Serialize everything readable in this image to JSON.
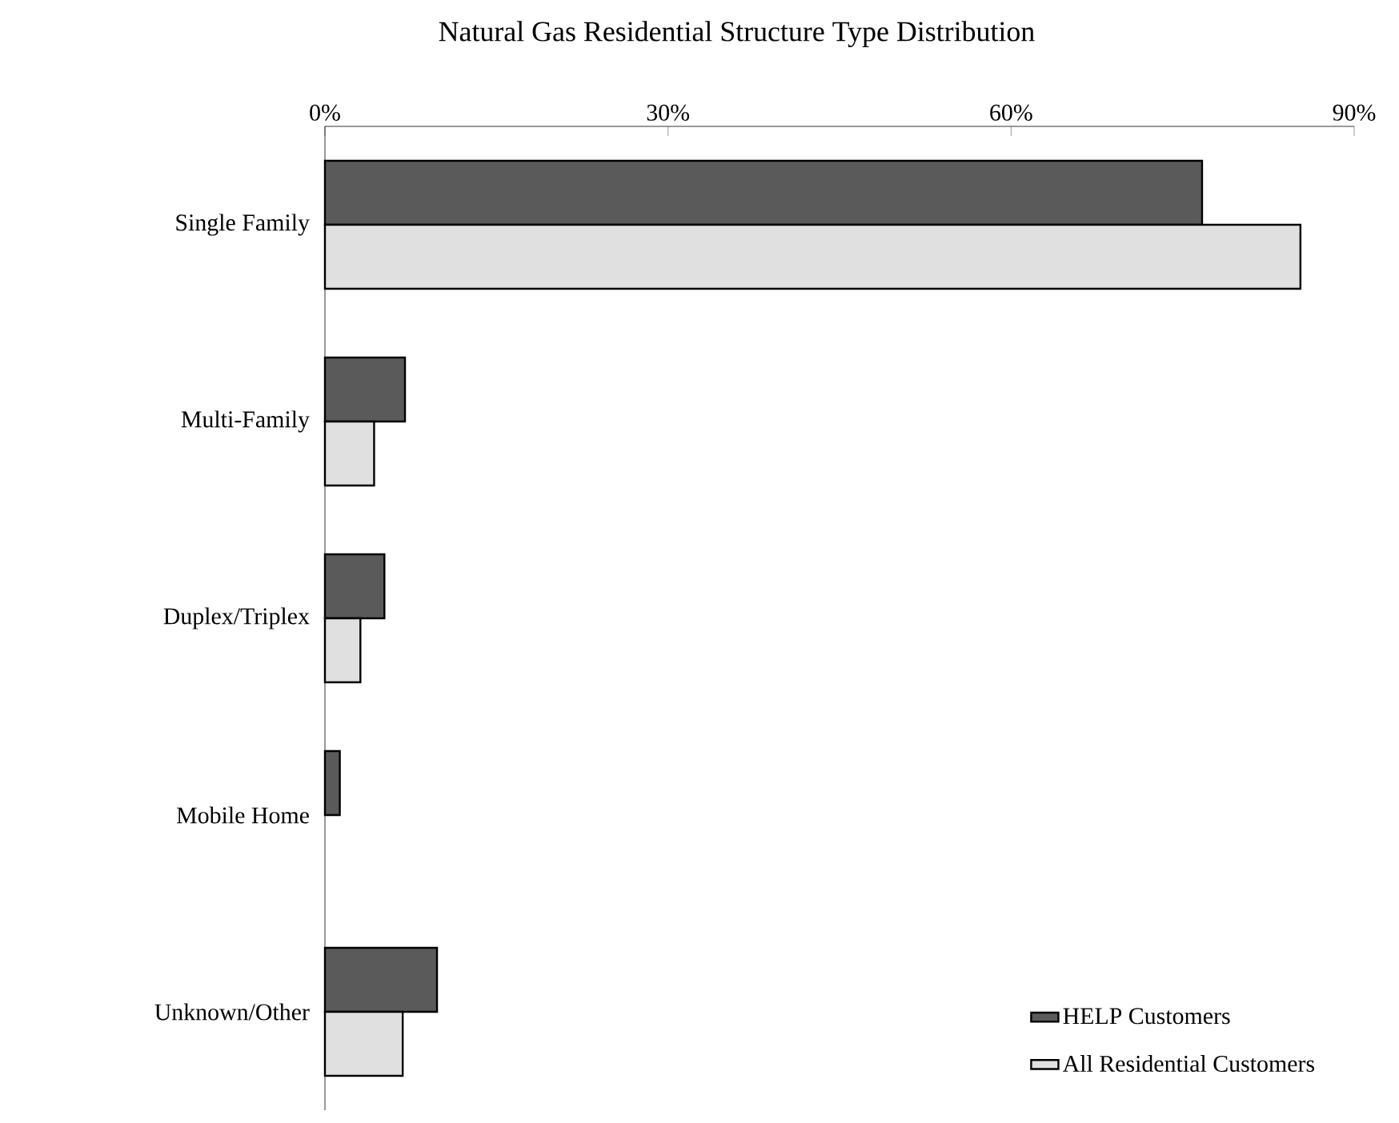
{
  "chart_data": {
    "type": "bar",
    "orientation": "horizontal",
    "title": "Natural Gas Residential Structure Type Distribution",
    "categories": [
      "Single Family",
      "Multi-Family",
      "Duplex/Triplex",
      "Mobile Home",
      "Unknown/Other"
    ],
    "series": [
      {
        "name": "HELP Customers",
        "color": "#5a5a5a",
        "values": [
          76.7,
          7.0,
          5.2,
          1.3,
          9.8
        ]
      },
      {
        "name": "All Residential Customers",
        "color": "#e0e0e0",
        "values": [
          85.3,
          4.3,
          3.1,
          0,
          6.8
        ]
      }
    ],
    "xlim": [
      0,
      90
    ],
    "xticks": [
      {
        "value": 0,
        "label": "0%"
      },
      {
        "value": 30,
        "label": "30%"
      },
      {
        "value": 60,
        "label": "60%"
      },
      {
        "value": 90,
        "label": "90%"
      }
    ],
    "grid": false,
    "legend": "bottom right"
  }
}
